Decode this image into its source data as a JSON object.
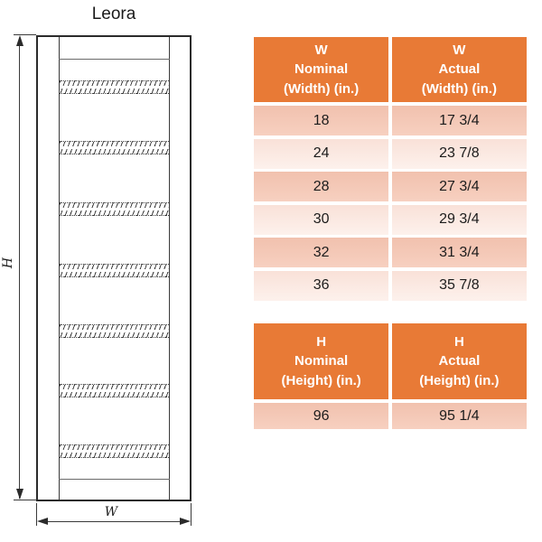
{
  "diagram": {
    "title": "Leora",
    "height_label": "H",
    "width_label": "W",
    "slat_count": 7
  },
  "tables": {
    "width": {
      "columns": [
        "W\nNominal\n(Width) (in.)",
        "W\nActual\n(Width) (in.)"
      ],
      "rows": [
        {
          "nominal": "18",
          "actual": "17 3/4"
        },
        {
          "nominal": "24",
          "actual": "23 7/8"
        },
        {
          "nominal": "28",
          "actual": "27 3/4"
        },
        {
          "nominal": "30",
          "actual": "29 3/4"
        },
        {
          "nominal": "32",
          "actual": "31 3/4"
        },
        {
          "nominal": "36",
          "actual": "35 7/8"
        }
      ]
    },
    "height": {
      "columns": [
        "H\nNominal\n(Height) (in.)",
        "H\nActual\n(Height) (in.)"
      ],
      "rows": [
        {
          "nominal": "96",
          "actual": "95 1/4"
        }
      ]
    }
  },
  "colors": {
    "header_orange": "#E87A36",
    "row_band_dark": "#F4C8B7",
    "row_band_light": "#FBEBE5",
    "line_color": "#3A3A3A"
  }
}
